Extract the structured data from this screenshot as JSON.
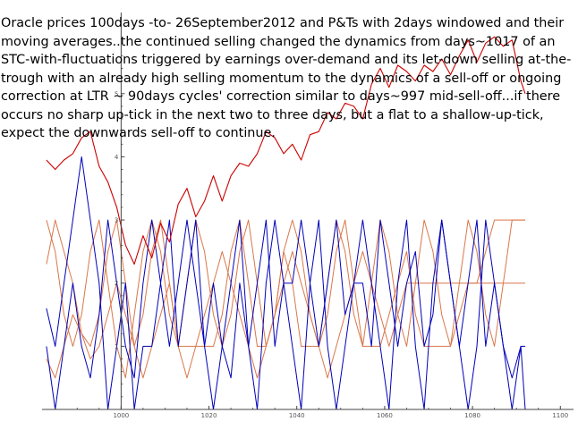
{
  "caption": "Oracle prices 100days -to- 26September2012 and P&Ts with 2days windowed and their moving averages..the continued selling changed the dynamics from days~1017 of an STC-with-fluctuations triggered by earnings over-demand and its let-down selling at-the-trough with an already high selling momentum to the dynamics of a sell-off or ongoing correction at LTR ~ 90days cycles' correction similar to days~997 mid-sell-off...if there occurs no sharp up-tick in the next two to three days, but a flat to a shallow-up-tick, expect the downwards sell-off to continue.",
  "chart_data": {
    "type": "line",
    "title": "",
    "xlabel": "",
    "ylabel": "",
    "xlim": [
      982,
      1103
    ],
    "ylim": [
      0,
      6.2
    ],
    "x_ticks": [
      "1000",
      "1020",
      "1040",
      "1060",
      "1080",
      "1100"
    ],
    "y_ticks": [
      "1",
      "2",
      "3",
      "4",
      "5"
    ],
    "colors": {
      "price": "#cc0000",
      "pt": "#0000b8",
      "ma": "#d9774a",
      "axis": "#444444"
    },
    "series": [
      {
        "name": "",
        "color": "#cc0000",
        "x": [
          983,
          985,
          987,
          989,
          991,
          993,
          995,
          997,
          999,
          1001,
          1003,
          1005,
          1007,
          1009,
          1011,
          1013,
          1015,
          1017,
          1019,
          1021,
          1023,
          1025,
          1027,
          1029,
          1031,
          1033,
          1035,
          1037,
          1039,
          1041,
          1043,
          1045,
          1047,
          1049,
          1051,
          1053,
          1055,
          1057,
          1059,
          1061,
          1063,
          1065,
          1067,
          1069,
          1071,
          1073,
          1075,
          1077,
          1079,
          1081,
          1083,
          1085,
          1087,
          1089,
          1091,
          1092
        ],
        "values": [
          3.95,
          3.8,
          3.95,
          4.05,
          4.3,
          4.4,
          3.85,
          3.6,
          3.2,
          2.6,
          2.3,
          2.75,
          2.4,
          2.95,
          2.65,
          3.25,
          3.5,
          3.05,
          3.3,
          3.7,
          3.3,
          3.7,
          3.9,
          3.85,
          4.05,
          4.4,
          4.3,
          4.05,
          4.2,
          3.95,
          4.35,
          4.4,
          4.7,
          4.6,
          4.85,
          4.8,
          4.6,
          5.15,
          5.4,
          5.1,
          5.45,
          5.35,
          5.2,
          5.45,
          5.35,
          5.55,
          5.3,
          5.6,
          5.85,
          5.5,
          5.8,
          5.9,
          5.75,
          5.85,
          5.2,
          5.0
        ]
      },
      {
        "name": "",
        "color": "#0000b8",
        "x": [
          983,
          985,
          987,
          989,
          991,
          993,
          995,
          997,
          999,
          1001,
          1003,
          1005,
          1007,
          1009,
          1011,
          1013,
          1015,
          1017,
          1019,
          1021,
          1023,
          1025,
          1027,
          1029,
          1031,
          1033,
          1035,
          1037,
          1039,
          1041,
          1043,
          1045,
          1047,
          1049,
          1051,
          1053,
          1055,
          1057,
          1059,
          1061,
          1063,
          1065,
          1067,
          1069,
          1071,
          1073,
          1075,
          1077,
          1079,
          1081,
          1083,
          1085,
          1087,
          1089,
          1091,
          1092
        ],
        "values": [
          1.6,
          1.0,
          2.0,
          3.0,
          4.0,
          3.0,
          2.0,
          0.0,
          1.0,
          2.0,
          0.0,
          1.0,
          1.0,
          2.0,
          3.0,
          1.0,
          2.0,
          3.0,
          1.0,
          0.0,
          1.0,
          2.0,
          3.0,
          1.0,
          0.0,
          2.0,
          3.0,
          2.0,
          1.0,
          0.0,
          2.0,
          3.0,
          1.0,
          0.0,
          1.0,
          2.0,
          3.0,
          2.0,
          1.0,
          0.0,
          2.0,
          3.0,
          1.0,
          0.0,
          2.0,
          3.0,
          2.0,
          1.0,
          0.0,
          1.0,
          3.0,
          2.0,
          1.0,
          0.0,
          1.0,
          0.0
        ]
      },
      {
        "name": "",
        "color": "#0000b8",
        "x": [
          983,
          985,
          987,
          989,
          991,
          993,
          995,
          997,
          999,
          1001,
          1003,
          1005,
          1007,
          1009,
          1011,
          1013,
          1015,
          1017,
          1019,
          1021,
          1023,
          1025,
          1027,
          1029,
          1031,
          1033,
          1035,
          1037,
          1039,
          1041,
          1043,
          1045,
          1047,
          1049,
          1051,
          1053,
          1055,
          1057,
          1059,
          1061,
          1063,
          1065,
          1067,
          1069,
          1071,
          1073,
          1075,
          1077,
          1079,
          1081,
          1083,
          1085,
          1087,
          1089,
          1091,
          1092
        ],
        "values": [
          1.0,
          0.0,
          1.0,
          2.0,
          1.0,
          0.5,
          1.5,
          3.0,
          2.0,
          1.0,
          0.5,
          2.0,
          3.0,
          2.0,
          1.0,
          2.0,
          3.0,
          2.0,
          1.0,
          2.0,
          1.0,
          0.5,
          2.0,
          1.0,
          2.0,
          3.0,
          1.0,
          2.0,
          2.0,
          3.0,
          2.0,
          1.0,
          2.0,
          3.0,
          1.5,
          2.0,
          2.0,
          1.0,
          3.0,
          2.0,
          1.0,
          2.0,
          2.5,
          1.0,
          1.5,
          3.0,
          2.0,
          1.0,
          2.0,
          3.0,
          1.0,
          2.0,
          1.0,
          0.5,
          1.0,
          1.0
        ]
      },
      {
        "name": "",
        "color": "#d9774a",
        "x": [
          983,
          985,
          987,
          989,
          991,
          993,
          995,
          997,
          999,
          1001,
          1003,
          1005,
          1007,
          1009,
          1011,
          1013,
          1015,
          1017,
          1019,
          1021,
          1023,
          1025,
          1027,
          1029,
          1031,
          1033,
          1035,
          1037,
          1039,
          1041,
          1043,
          1045,
          1047,
          1049,
          1051,
          1053,
          1055,
          1057,
          1059,
          1061,
          1063,
          1065,
          1067,
          1069,
          1071,
          1073,
          1075,
          1077,
          1079,
          1081,
          1083,
          1085,
          1087,
          1089,
          1091,
          1092
        ],
        "values": [
          2.3,
          3.0,
          2.5,
          2.0,
          1.2,
          1.0,
          1.5,
          2.5,
          3.0,
          2.0,
          1.0,
          1.5,
          2.5,
          3.0,
          2.0,
          1.0,
          2.0,
          3.0,
          2.5,
          1.5,
          1.0,
          1.5,
          2.5,
          3.0,
          2.0,
          1.0,
          1.5,
          2.5,
          3.0,
          2.5,
          1.5,
          1.0,
          2.0,
          3.0,
          2.5,
          1.5,
          1.0,
          2.0,
          3.0,
          2.5,
          1.5,
          1.0,
          2.0,
          3.0,
          2.5,
          1.5,
          1.0,
          2.0,
          3.0,
          2.5,
          1.5,
          1.0,
          2.0,
          3.0,
          3.0,
          3.0
        ]
      },
      {
        "name": "",
        "color": "#d9774a",
        "x": [
          983,
          985,
          987,
          989,
          991,
          993,
          995,
          997,
          999,
          1001,
          1003,
          1005,
          1007,
          1009,
          1011,
          1013,
          1015,
          1017,
          1019,
          1021,
          1023,
          1025,
          1027,
          1029,
          1031,
          1033,
          1035,
          1037,
          1039,
          1041,
          1043,
          1045,
          1047,
          1049,
          1051,
          1053,
          1055,
          1057,
          1059,
          1061,
          1063,
          1065,
          1067,
          1069,
          1071,
          1073,
          1075,
          1077,
          1079,
          1081,
          1083,
          1085,
          1087,
          1089,
          1091,
          1092
        ],
        "values": [
          3.0,
          2.5,
          1.5,
          1.0,
          1.5,
          2.5,
          3.0,
          2.0,
          1.0,
          0.5,
          1.5,
          2.5,
          3.0,
          2.5,
          1.5,
          1.0,
          1.0,
          1.0,
          1.0,
          1.0,
          1.5,
          2.5,
          3.0,
          2.0,
          1.0,
          1.0,
          1.5,
          2.5,
          2.0,
          1.0,
          1.0,
          1.0,
          1.5,
          2.5,
          3.0,
          2.0,
          1.0,
          1.0,
          1.0,
          1.5,
          2.0,
          2.5,
          1.5,
          1.0,
          1.0,
          1.0,
          1.0,
          1.5,
          2.0,
          2.0,
          2.0,
          2.0,
          2.0,
          2.0,
          2.0,
          2.0
        ]
      },
      {
        "name": "",
        "color": "#d9774a",
        "x": [
          983,
          985,
          987,
          989,
          991,
          993,
          995,
          997,
          999,
          1001,
          1003,
          1005,
          1007,
          1009,
          1011,
          1013,
          1015,
          1017,
          1019,
          1021,
          1023,
          1025,
          1027,
          1029,
          1031,
          1033,
          1035,
          1037,
          1039,
          1041,
          1043,
          1045,
          1047,
          1049,
          1051,
          1053,
          1055,
          1057,
          1059,
          1061,
          1063,
          1065,
          1067,
          1069,
          1071,
          1073,
          1075,
          1077,
          1079,
          1081,
          1083,
          1085,
          1087,
          1089,
          1091,
          1092
        ],
        "values": [
          0.8,
          0.5,
          1.0,
          1.5,
          1.2,
          0.8,
          1.0,
          1.5,
          2.0,
          1.5,
          1.0,
          0.5,
          1.0,
          1.5,
          2.0,
          1.0,
          0.5,
          1.0,
          1.5,
          2.0,
          2.5,
          2.0,
          1.5,
          1.0,
          0.5,
          1.0,
          1.5,
          2.0,
          2.5,
          2.0,
          1.5,
          1.0,
          0.5,
          1.0,
          1.5,
          2.0,
          2.5,
          2.0,
          1.5,
          1.0,
          1.5,
          2.0,
          2.0,
          2.0,
          2.0,
          2.0,
          2.0,
          2.0,
          2.0,
          2.0,
          2.5,
          3.0,
          3.0,
          3.0,
          3.0,
          3.0
        ]
      }
    ]
  }
}
